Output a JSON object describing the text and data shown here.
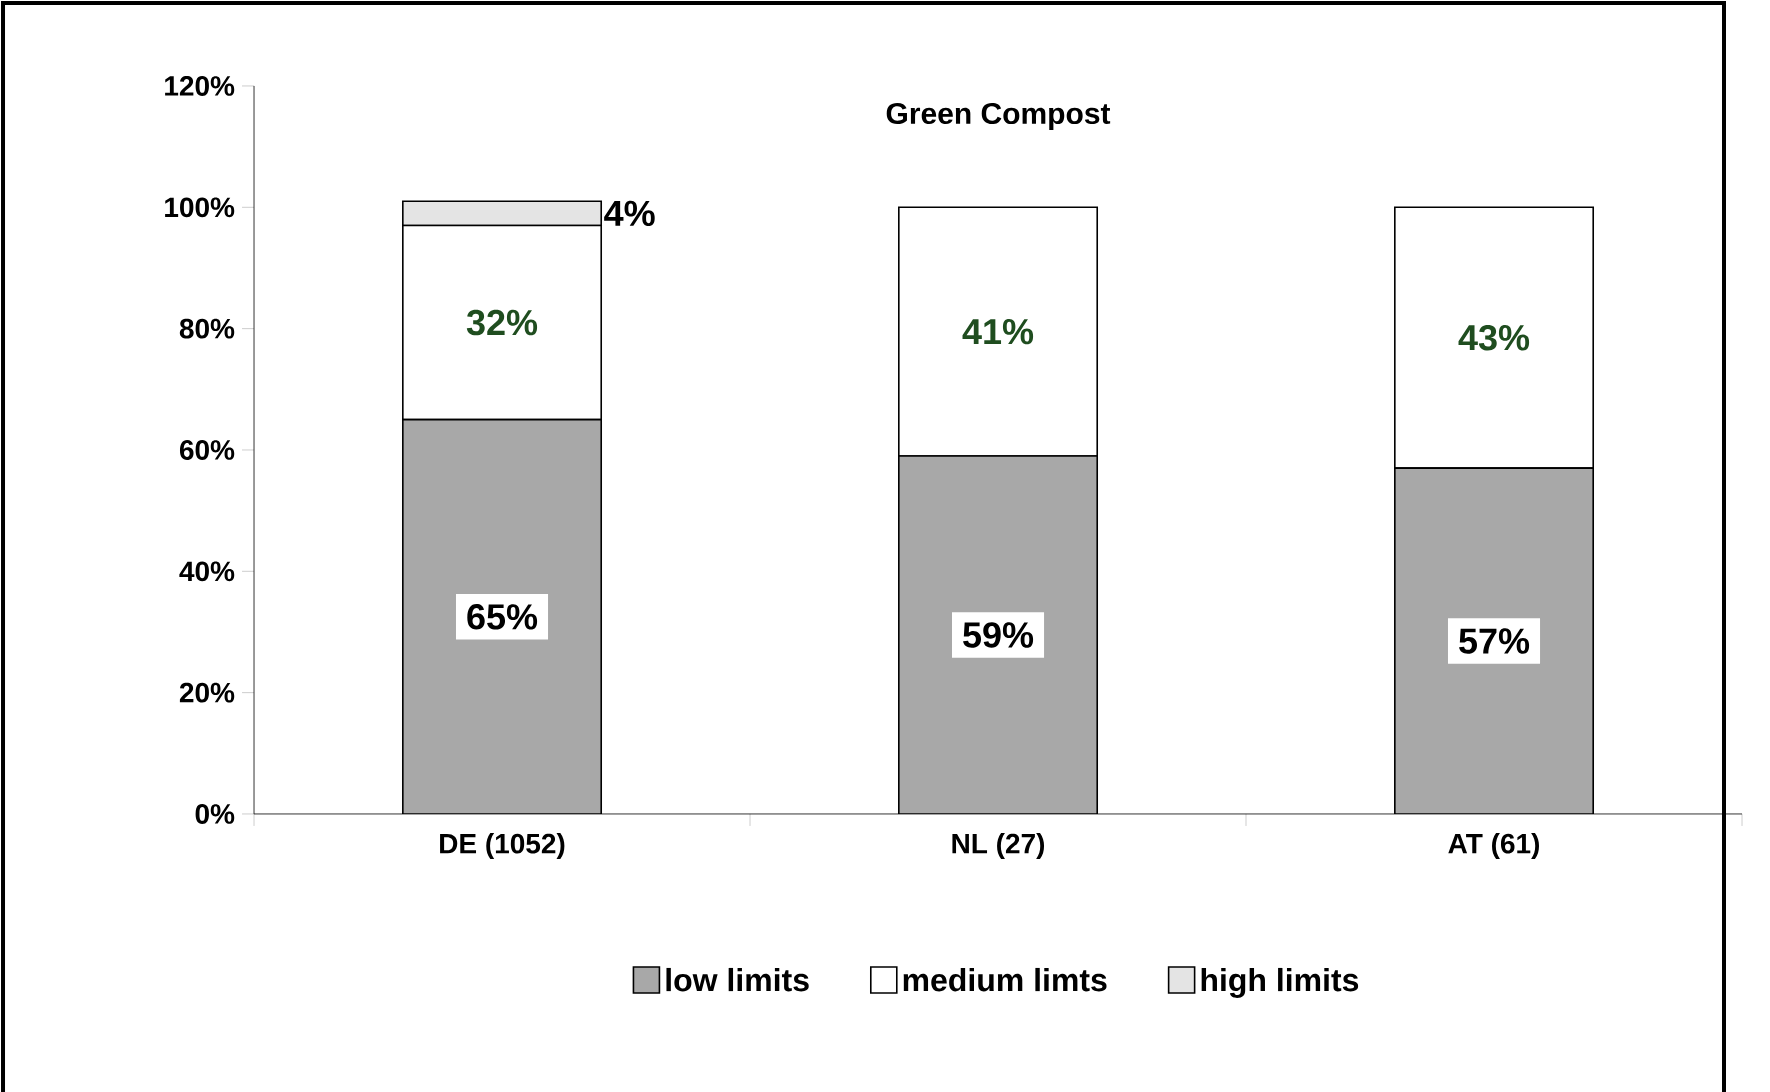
{
  "chart_data": {
    "type": "bar",
    "title": "Green Compost",
    "stacked": true,
    "legend": "bottom",
    "categories": [
      "DE (1052)",
      "NL (27)",
      "AT (61)"
    ],
    "series": [
      {
        "name": "low limits",
        "color": "#a8a8a8",
        "values": [
          65,
          59,
          57
        ],
        "value_labels": [
          "65%",
          "59%",
          "57%"
        ]
      },
      {
        "name": "medium limts",
        "color": "#ffffff",
        "values": [
          32,
          41,
          43
        ],
        "value_labels": [
          "32%",
          "41%",
          "43%"
        ]
      },
      {
        "name": "high limits",
        "color": "#e4e4e4",
        "values": [
          4,
          null,
          null
        ],
        "value_labels": [
          "4%",
          null,
          null
        ]
      }
    ],
    "ylim": [
      0,
      120
    ],
    "yticks": [
      {
        "value": 0,
        "label": "0%"
      },
      {
        "value": 20,
        "label": "20%"
      },
      {
        "value": 40,
        "label": "40%"
      },
      {
        "value": 60,
        "label": "60%"
      },
      {
        "value": 80,
        "label": "80%"
      },
      {
        "value": 100,
        "label": "100%"
      },
      {
        "value": 120,
        "label": "120%"
      }
    ]
  }
}
